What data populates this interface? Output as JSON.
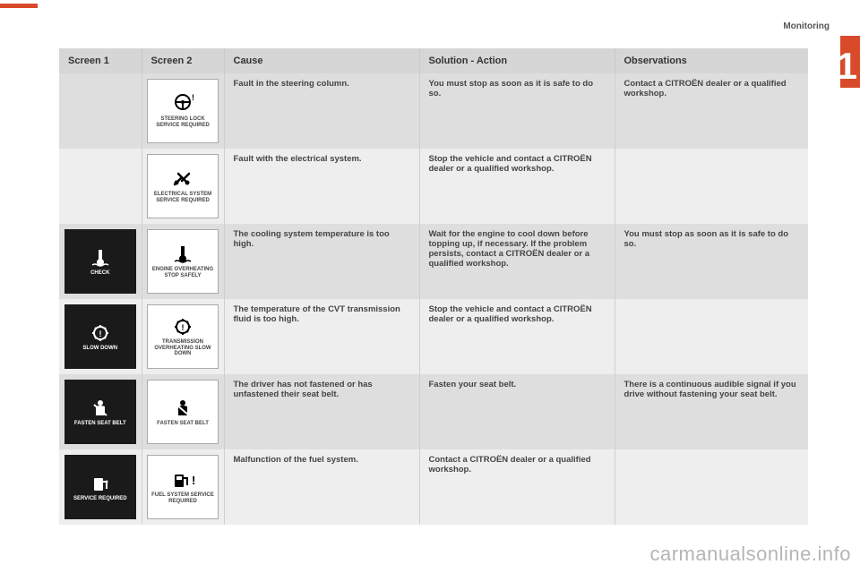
{
  "section_label": "Monitoring",
  "chapter_number": "1",
  "headers": {
    "screen1": "Screen 1",
    "screen2": "Screen 2",
    "cause": "Cause",
    "solution": "Solution - Action",
    "observations": "Observations"
  },
  "rows": [
    {
      "screen1": null,
      "screen2": {
        "name": "steering-lock-icon",
        "caption": "STEERING LOCK SERVICE REQUIRED",
        "glyph": "steering"
      },
      "cause": "Fault in the steering column.",
      "solution": "You must stop as soon as it is safe to do so.",
      "observations": "Contact a CITROËN dealer or a qualified workshop."
    },
    {
      "screen1": null,
      "screen2": {
        "name": "electrical-system-icon",
        "caption": "ELECTRICAL SYSTEM SERVICE REQUIRED",
        "glyph": "wrenches"
      },
      "cause": "Fault with the electrical system.",
      "solution": "Stop the vehicle and contact a CITROËN dealer or a qualified workshop.",
      "observations": ""
    },
    {
      "screen1": {
        "name": "check-temp-icon",
        "caption": "CHECK",
        "glyph": "thermo",
        "inverted": true
      },
      "screen2": {
        "name": "engine-overheating-icon",
        "caption": "ENGINE OVERHEATING STOP SAFELY",
        "glyph": "thermo"
      },
      "cause": "The cooling system temperature is too high.",
      "solution": "Wait for the engine to cool down before topping up, if necessary. If the problem persists, contact a CITROËN dealer or a qualified workshop.",
      "observations": "You must stop as soon as it is safe to do so."
    },
    {
      "screen1": {
        "name": "slow-down-icon",
        "caption": "SLOW DOWN",
        "glyph": "gear",
        "inverted": true
      },
      "screen2": {
        "name": "transmission-overheating-icon",
        "caption": "TRANSMISSION OVERHEATING SLOW DOWN",
        "glyph": "gear"
      },
      "cause": "The temperature of the CVT transmission fluid is too high.",
      "solution": "Stop the vehicle and contact a CITROËN dealer or a qualified workshop.",
      "observations": ""
    },
    {
      "screen1": {
        "name": "fasten-seat-belt-icon",
        "caption": "FASTEN SEAT BELT",
        "glyph": "seatbelt",
        "inverted": true
      },
      "screen2": {
        "name": "fasten-seat-belt-icon-2",
        "caption": "FASTEN SEAT BELT",
        "glyph": "seatbelt"
      },
      "cause": "The driver has not fastened or has unfastened their seat belt.",
      "solution": "Fasten your seat belt.",
      "observations": "There is a continuous audible signal if you drive without fastening your seat belt."
    },
    {
      "screen1": {
        "name": "service-required-fuel-icon",
        "caption": "SERVICE REQUIRED",
        "glyph": "fuel",
        "inverted": true
      },
      "screen2": {
        "name": "fuel-system-service-icon",
        "caption": "FUEL SYSTEM SERVICE REQUIRED",
        "glyph": "fuelwarn"
      },
      "cause": "Malfunction of the fuel system.",
      "solution": "Contact a CITROËN dealer or a qualified workshop.",
      "observations": ""
    }
  ],
  "watermark": "carmanualsonline.info",
  "colors": {
    "accent": "#d94a2b",
    "header_bg": "#d6d6d6",
    "row_odd": "#dedede",
    "row_even": "#eeeeee",
    "text": "#444444"
  }
}
